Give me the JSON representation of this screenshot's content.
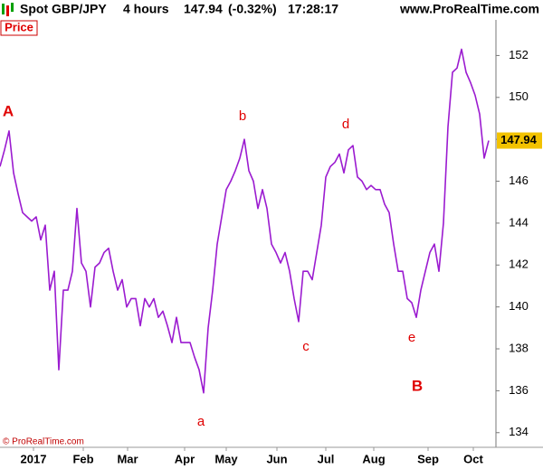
{
  "chart_data": {
    "type": "line",
    "title": "Spot GBP/JPY",
    "interval": "4 hours",
    "last_price": 147.94,
    "change": "(-0.32%)",
    "time": "17:28:17",
    "website": "www.ProRealTime.com",
    "panel_label": "Price",
    "copyright": "© ProRealTime.com",
    "color": "#9b1bd0",
    "values": [
      146.7,
      147.5,
      148.4,
      146.4,
      145.4,
      144.5,
      144.3,
      144.1,
      144.3,
      143.2,
      143.9,
      140.8,
      141.7,
      137.0,
      140.8,
      140.8,
      141.7,
      144.7,
      142.1,
      141.7,
      140.0,
      141.9,
      142.1,
      142.6,
      142.8,
      141.7,
      140.8,
      141.3,
      140.0,
      140.4,
      140.4,
      139.1,
      140.4,
      140.0,
      140.4,
      139.5,
      139.8,
      139.1,
      138.3,
      139.5,
      138.3,
      138.3,
      138.3,
      137.6,
      137.0,
      135.9,
      139.0,
      140.8,
      143.0,
      144.3,
      145.6,
      146.0,
      146.5,
      147.1,
      148.0,
      146.5,
      146.0,
      144.7,
      145.6,
      144.7,
      143.0,
      142.6,
      142.1,
      142.6,
      141.7,
      140.4,
      139.3,
      141.7,
      141.7,
      141.3,
      142.6,
      143.9,
      146.2,
      146.7,
      146.9,
      147.3,
      146.4,
      147.5,
      147.7,
      146.2,
      146.0,
      145.6,
      145.8,
      145.6,
      145.6,
      144.9,
      144.5,
      143.0,
      141.7,
      141.7,
      140.4,
      140.2,
      139.5,
      140.8,
      141.7,
      142.6,
      143.0,
      141.7,
      144.0,
      148.6,
      151.2,
      151.4,
      152.3,
      151.2,
      150.7,
      150.1,
      149.2,
      147.1,
      147.94
    ],
    "xlim": [
      0,
      109.6
    ],
    "xticks": [
      {
        "value": 7.4,
        "label": "2017"
      },
      {
        "value": 18.4,
        "label": "Feb"
      },
      {
        "value": 28.2,
        "label": "Mar"
      },
      {
        "value": 40.8,
        "label": "Apr"
      },
      {
        "value": 50,
        "label": "May"
      },
      {
        "value": 61.2,
        "label": "Jun"
      },
      {
        "value": 72,
        "label": "Jul"
      },
      {
        "value": 82.6,
        "label": "Aug"
      },
      {
        "value": 94.6,
        "label": "Sep"
      },
      {
        "value": 104.6,
        "label": "Oct"
      }
    ],
    "ylim": [
      133.3,
      153.7
    ],
    "yticks": [
      134,
      136,
      138,
      140,
      142,
      144,
      146,
      148,
      150,
      152
    ],
    "annotations": [
      "A",
      "a",
      "b",
      "c",
      "d",
      "e",
      "B"
    ]
  }
}
